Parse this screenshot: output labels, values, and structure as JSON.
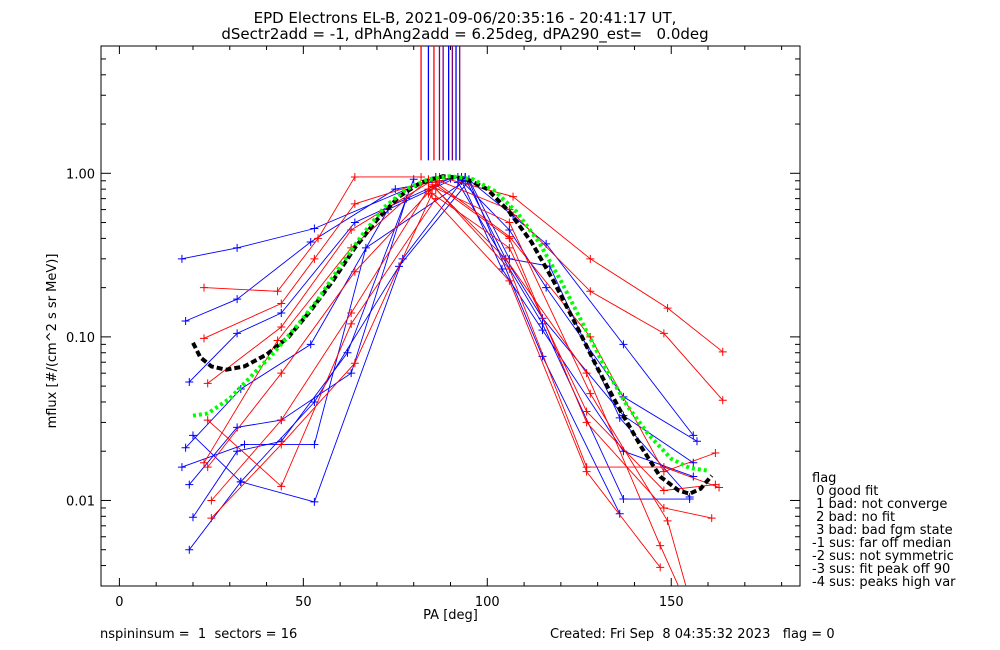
{
  "chart_data": {
    "type": "line",
    "title": "EPD Electrons EL-B, 2021-09-06/20:35:16 - 20:41:17 UT,",
    "subtitle": "dSectr2add = -1, dPhAng2add = 6.25deg, dPA290_est=   0.0deg",
    "xlabel": "PA [deg]",
    "ylabel": "mflux [#/(cm^2 s sr MeV)]",
    "xlim": [
      -5,
      185
    ],
    "ylim": [
      0.003,
      6.0
    ],
    "yscale": "log",
    "xticks": [
      0,
      50,
      100,
      150
    ],
    "yticks": [
      {
        "value": 0.01,
        "label": "0.01"
      },
      {
        "value": 0.1,
        "label": "0.10"
      },
      {
        "value": 1.0,
        "label": "1.00"
      }
    ],
    "colors": {
      "red": "#ff0000",
      "blue": "#0000ff",
      "purple": "#800080",
      "black": "#000000",
      "green": "#00ff00"
    },
    "vertical_markers": {
      "ymin": 1.2,
      "ymax": 6.0,
      "lines": [
        {
          "x": 82,
          "color": "#ff0000"
        },
        {
          "x": 84,
          "color": "#0000ff"
        },
        {
          "x": 85.5,
          "color": "#ff0000"
        },
        {
          "x": 87,
          "color": "#800080"
        },
        {
          "x": 88,
          "color": "#800080"
        },
        {
          "x": 89.5,
          "color": "#0000ff"
        },
        {
          "x": 90.5,
          "color": "#800080"
        },
        {
          "x": 91.5,
          "color": "#0000ff"
        },
        {
          "x": 92.5,
          "color": "#800080"
        }
      ]
    },
    "series": [
      {
        "color": "#0000ff",
        "points": [
          [
            17,
            0.3
          ],
          [
            32,
            0.35
          ],
          [
            53,
            0.46
          ],
          [
            86,
            0.95
          ]
        ]
      },
      {
        "color": "#0000ff",
        "points": [
          [
            18,
            0.125
          ],
          [
            32,
            0.17
          ],
          [
            52,
            0.38
          ],
          [
            75,
            0.8
          ],
          [
            93,
            0.95
          ]
        ]
      },
      {
        "color": "#0000ff",
        "points": [
          [
            19,
            0.053
          ],
          [
            32,
            0.105
          ],
          [
            44,
            0.14
          ],
          [
            64,
            0.5
          ],
          [
            90,
            0.93
          ]
        ]
      },
      {
        "color": "#0000ff",
        "points": [
          [
            18,
            0.021
          ],
          [
            33,
            0.048
          ],
          [
            52,
            0.09
          ],
          [
            73,
            0.6
          ],
          [
            92,
            0.95
          ]
        ]
      },
      {
        "color": "#0000ff",
        "points": [
          [
            17,
            0.016
          ],
          [
            34,
            0.022
          ],
          [
            53,
            0.022
          ],
          [
            67,
            0.35
          ],
          [
            94,
            0.9
          ]
        ]
      },
      {
        "color": "#0000ff",
        "points": [
          [
            20,
            0.025
          ],
          [
            33,
            0.013
          ],
          [
            53,
            0.04
          ],
          [
            76,
            0.27
          ],
          [
            95,
            0.9
          ],
          [
            115,
            0.076
          ],
          [
            136,
            0.0083
          ]
        ]
      },
      {
        "color": "#0000ff",
        "points": [
          [
            19,
            0.005
          ],
          [
            33,
            0.013
          ],
          [
            53,
            0.0098
          ],
          [
            77,
            0.3
          ],
          [
            94,
            0.95
          ]
        ]
      },
      {
        "color": "#0000ff",
        "points": [
          [
            20,
            0.0079
          ],
          [
            32,
            0.02
          ],
          [
            44,
            0.023
          ],
          [
            62,
            0.08
          ],
          [
            80,
            0.92
          ]
        ]
      },
      {
        "color": "#0000ff",
        "points": [
          [
            19,
            0.0125
          ],
          [
            32,
            0.028
          ],
          [
            44,
            0.031
          ],
          [
            63,
            0.06
          ],
          [
            78,
            0.7
          ]
        ]
      },
      {
        "color": "#0000ff",
        "points": [
          [
            94,
            0.95
          ],
          [
            107,
            0.55
          ],
          [
            116,
            0.37
          ],
          [
            137,
            0.09
          ],
          [
            156,
            0.025
          ]
        ]
      },
      {
        "color": "#0000ff",
        "points": [
          [
            93,
            0.9
          ],
          [
            106,
            0.45
          ],
          [
            116,
            0.2
          ],
          [
            137,
            0.043
          ],
          [
            157,
            0.023
          ]
        ]
      },
      {
        "color": "#0000ff",
        "points": [
          [
            94,
            0.93
          ],
          [
            105,
            0.3
          ],
          [
            115,
            0.13
          ],
          [
            137,
            0.033
          ],
          [
            156,
            0.017
          ]
        ]
      },
      {
        "color": "#0000ff",
        "points": [
          [
            93,
            0.9
          ],
          [
            104,
            0.26
          ],
          [
            115,
            0.11
          ],
          [
            137,
            0.02
          ],
          [
            156,
            0.014
          ]
        ]
      },
      {
        "color": "#0000ff",
        "points": [
          [
            95,
            0.92
          ],
          [
            106,
            0.3
          ],
          [
            117,
            0.27
          ],
          [
            136,
            0.032
          ],
          [
            155,
            0.0105
          ]
        ]
      },
      {
        "color": "#0000ff",
        "points": [
          [
            92,
            0.88
          ],
          [
            115,
            0.12
          ],
          [
            137,
            0.0102
          ],
          [
            155,
            0.0102
          ]
        ]
      },
      {
        "color": "#ff0000",
        "points": [
          [
            23,
            0.2
          ],
          [
            43,
            0.19
          ],
          [
            54,
            0.4
          ],
          [
            64,
            0.95
          ],
          [
            82,
            0.95
          ]
        ]
      },
      {
        "color": "#ff0000",
        "points": [
          [
            23,
            0.098
          ],
          [
            44,
            0.16
          ],
          [
            53,
            0.3
          ],
          [
            64,
            0.65
          ],
          [
            84,
            0.9
          ]
        ]
      },
      {
        "color": "#ff0000",
        "points": [
          [
            24,
            0.052
          ],
          [
            44,
            0.115
          ],
          [
            63,
            0.45
          ],
          [
            86,
            0.93
          ]
        ]
      },
      {
        "color": "#ff0000",
        "points": [
          [
            23,
            0.017
          ],
          [
            43,
            0.095
          ],
          [
            63,
            0.35
          ],
          [
            84,
            0.92
          ]
        ]
      },
      {
        "color": "#ff0000",
        "points": [
          [
            24,
            0.016
          ],
          [
            44,
            0.06
          ],
          [
            64,
            0.25
          ],
          [
            86,
            0.85
          ]
        ]
      },
      {
        "color": "#ff0000",
        "points": [
          [
            25,
            0.01
          ],
          [
            44,
            0.031
          ],
          [
            63,
            0.14
          ],
          [
            84,
            0.8
          ]
        ]
      },
      {
        "color": "#ff0000",
        "points": [
          [
            25,
            0.0078
          ],
          [
            44,
            0.022
          ],
          [
            64,
            0.069
          ],
          [
            85,
            0.75
          ]
        ]
      },
      {
        "color": "#ff0000",
        "points": [
          [
            24,
            0.031
          ],
          [
            44,
            0.0122
          ],
          [
            63,
            0.12
          ],
          [
            86,
            0.7
          ]
        ]
      },
      {
        "color": "#ff0000",
        "points": [
          [
            87,
            0.95
          ],
          [
            107,
            0.72
          ],
          [
            128,
            0.3
          ],
          [
            149,
            0.15
          ],
          [
            164,
            0.081
          ]
        ]
      },
      {
        "color": "#ff0000",
        "points": [
          [
            87,
            0.9
          ],
          [
            106,
            0.6
          ],
          [
            128,
            0.19
          ],
          [
            148,
            0.105
          ],
          [
            164,
            0.041
          ]
        ]
      },
      {
        "color": "#ff0000",
        "points": [
          [
            86,
            0.88
          ],
          [
            106,
            0.41
          ],
          [
            128,
            0.1
          ],
          [
            148,
            0.015
          ],
          [
            162,
            0.0195
          ]
        ]
      },
      {
        "color": "#ff0000",
        "points": [
          [
            85,
            0.85
          ],
          [
            106,
            0.26
          ],
          [
            127,
            0.016
          ],
          [
            148,
            0.016
          ],
          [
            163,
            0.012
          ]
        ]
      },
      {
        "color": "#ff0000",
        "points": [
          [
            86,
            0.8
          ],
          [
            105,
            0.3
          ],
          [
            127,
            0.06
          ],
          [
            147,
            0.0053
          ],
          [
            158,
            0.0015
          ]
        ]
      },
      {
        "color": "#ff0000",
        "points": [
          [
            84,
            0.75
          ],
          [
            106,
            0.22
          ],
          [
            127,
            0.015
          ],
          [
            147,
            0.0039
          ]
        ]
      },
      {
        "color": "#ff0000",
        "points": [
          [
            86,
            0.85
          ],
          [
            106,
            0.4
          ],
          [
            127,
            0.03
          ],
          [
            148,
            0.009
          ],
          [
            161,
            0.0078
          ]
        ]
      },
      {
        "color": "#ff0000",
        "points": [
          [
            84,
            0.78
          ],
          [
            106,
            0.35
          ],
          [
            127,
            0.035
          ],
          [
            148,
            0.0115
          ],
          [
            162,
            0.0125
          ]
        ]
      },
      {
        "color": "#ff0000",
        "points": [
          [
            85,
            0.83
          ],
          [
            106,
            0.5
          ],
          [
            128,
            0.045
          ],
          [
            149,
            0.0075
          ],
          [
            155,
            0.0025
          ]
        ]
      }
    ],
    "fits": [
      {
        "color": "#000000",
        "style": "dashed",
        "points": [
          [
            20,
            0.092
          ],
          [
            22,
            0.075
          ],
          [
            25,
            0.066
          ],
          [
            29,
            0.063
          ],
          [
            34,
            0.066
          ],
          [
            40,
            0.078
          ],
          [
            46,
            0.1
          ],
          [
            52,
            0.145
          ],
          [
            58,
            0.22
          ],
          [
            64,
            0.35
          ],
          [
            70,
            0.52
          ],
          [
            76,
            0.72
          ],
          [
            82,
            0.88
          ],
          [
            88,
            0.96
          ],
          [
            94,
            0.93
          ],
          [
            100,
            0.8
          ],
          [
            106,
            0.58
          ],
          [
            112,
            0.38
          ],
          [
            118,
            0.22
          ],
          [
            124,
            0.12
          ],
          [
            130,
            0.064
          ],
          [
            136,
            0.036
          ],
          [
            142,
            0.021
          ],
          [
            147,
            0.014
          ],
          [
            152,
            0.0115
          ],
          [
            155,
            0.011
          ],
          [
            158,
            0.0118
          ],
          [
            161,
            0.0142
          ]
        ]
      },
      {
        "color": "#00ff00",
        "style": "dotted",
        "points": [
          [
            20,
            0.033
          ],
          [
            24,
            0.034
          ],
          [
            30,
            0.042
          ],
          [
            36,
            0.058
          ],
          [
            42,
            0.08
          ],
          [
            48,
            0.115
          ],
          [
            54,
            0.17
          ],
          [
            60,
            0.27
          ],
          [
            66,
            0.42
          ],
          [
            72,
            0.62
          ],
          [
            78,
            0.8
          ],
          [
            84,
            0.92
          ],
          [
            90,
            0.96
          ],
          [
            96,
            0.92
          ],
          [
            102,
            0.78
          ],
          [
            108,
            0.58
          ],
          [
            114,
            0.38
          ],
          [
            120,
            0.22
          ],
          [
            126,
            0.12
          ],
          [
            132,
            0.065
          ],
          [
            138,
            0.038
          ],
          [
            144,
            0.025
          ],
          [
            150,
            0.018
          ],
          [
            155,
            0.0158
          ],
          [
            160,
            0.0152
          ]
        ]
      }
    ],
    "legend": {
      "title": "flag",
      "placement": "right-outside",
      "items": [
        " 0 good fit",
        " 1 bad: not converge",
        " 2 bad: no fit",
        " 3 bad: bad fgm state",
        "-1 sus: far off median",
        "-2 sus: not symmetric",
        "-3 sus: fit peak off 90",
        "-4 sus: peaks high var"
      ]
    }
  },
  "footer": {
    "left": "nspininsum =  1  sectors = 16",
    "right": "Created: Fri Sep  8 04:35:32 2023   flag = 0"
  }
}
